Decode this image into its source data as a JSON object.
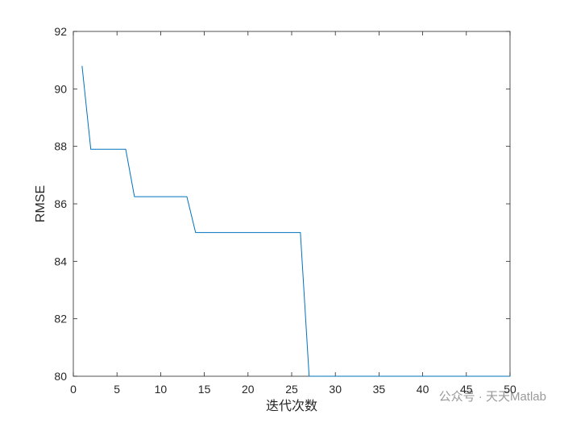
{
  "chart_data": {
    "type": "line",
    "xlabel": "迭代次数",
    "ylabel": "RMSE",
    "annotation": "公众号 · 天天Matlab",
    "x": [
      1,
      2,
      3,
      4,
      5,
      6,
      7,
      8,
      9,
      10,
      11,
      12,
      13,
      14,
      15,
      16,
      17,
      18,
      19,
      20,
      21,
      22,
      23,
      24,
      25,
      26,
      27,
      28,
      29,
      30,
      31,
      32,
      33,
      34,
      35,
      36,
      37,
      38,
      39,
      40,
      41,
      42,
      43,
      44,
      45,
      46,
      47,
      48,
      49,
      50
    ],
    "series": [
      {
        "color": "#0072bd",
        "values": [
          90.8,
          87.9,
          87.9,
          87.9,
          87.9,
          87.9,
          86.25,
          86.25,
          86.25,
          86.25,
          86.25,
          86.25,
          86.25,
          85.0,
          85.0,
          85.0,
          85.0,
          85.0,
          85.0,
          85.0,
          85.0,
          85.0,
          85.0,
          85.0,
          85.0,
          85.0,
          80.0,
          80.0,
          80.0,
          80.0,
          80.0,
          80.0,
          80.0,
          80.0,
          80.0,
          80.0,
          80.0,
          80.0,
          80.0,
          80.0,
          80.0,
          80.0,
          80.0,
          80.0,
          80.0,
          80.0,
          80.0,
          80.0,
          80.0,
          80.0
        ]
      }
    ],
    "xlim": [
      0,
      50
    ],
    "xticks": [
      0,
      5,
      10,
      15,
      20,
      25,
      30,
      35,
      40,
      45,
      50
    ],
    "ylim": [
      80,
      92
    ],
    "yticks": [
      80,
      82,
      84,
      86,
      88,
      90,
      92
    ],
    "grid": false
  }
}
